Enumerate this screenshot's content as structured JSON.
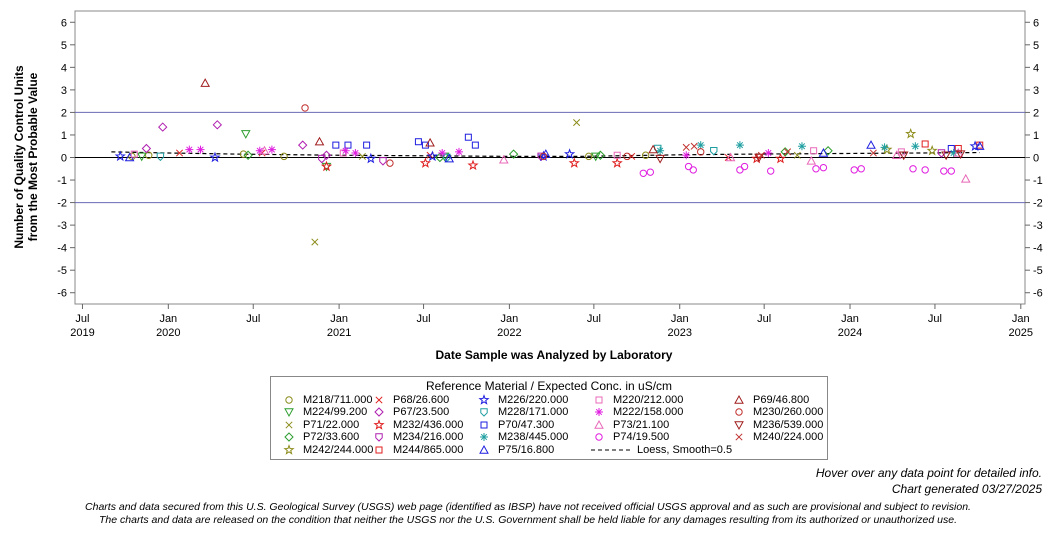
{
  "chart_data": {
    "type": "scatter",
    "ylabel_line1": "Number of Quality Control Units",
    "ylabel_line2": "from the Most Probable Value",
    "xlabel": "Date Sample was Analyzed by Laboratory",
    "ylim": [
      -6.5,
      6.5
    ],
    "yticks": [
      -6,
      -5,
      -4,
      -3,
      -2,
      -1,
      0,
      1,
      2,
      3,
      4,
      5,
      6
    ],
    "xlim": [
      "2019-06-15",
      "2025-01-10"
    ],
    "xticks": [
      {
        "date": "2019-07-01",
        "label": "Jul",
        "year": "2019"
      },
      {
        "date": "2020-01-01",
        "label": "Jan",
        "year": "2020"
      },
      {
        "date": "2020-07-01",
        "label": "Jul",
        "year": ""
      },
      {
        "date": "2021-01-01",
        "label": "Jan",
        "year": "2021"
      },
      {
        "date": "2021-07-01",
        "label": "Jul",
        "year": ""
      },
      {
        "date": "2022-01-01",
        "label": "Jan",
        "year": "2022"
      },
      {
        "date": "2022-07-01",
        "label": "Jul",
        "year": ""
      },
      {
        "date": "2023-01-01",
        "label": "Jan",
        "year": "2023"
      },
      {
        "date": "2023-07-01",
        "label": "Jul",
        "year": ""
      },
      {
        "date": "2024-01-01",
        "label": "Jan",
        "year": "2024"
      },
      {
        "date": "2024-07-01",
        "label": "Jul",
        "year": ""
      },
      {
        "date": "2025-01-01",
        "label": "Jan",
        "year": "2025"
      }
    ],
    "reference_lines": [
      {
        "y": 2,
        "color": "#6a6ab8"
      },
      {
        "y": 0,
        "color": "#000000"
      },
      {
        "y": -2,
        "color": "#6a6ab8"
      }
    ],
    "grid": false,
    "legend_position": "bottom-center",
    "legend_title": "Reference Material / Expected Conc. in uS/cm",
    "series": [
      {
        "name": "M218/711.000",
        "marker": "circle",
        "color": "#8c8c1a",
        "points": [
          [
            "2019-10-15",
            0.05
          ],
          [
            "2019-11-20",
            0.1
          ],
          [
            "2020-06-10",
            0.15
          ],
          [
            "2020-09-05",
            0.05
          ],
          [
            "2022-06-20",
            0.05
          ],
          [
            "2022-10-20",
            0.1
          ]
        ]
      },
      {
        "name": "M224/99.200",
        "marker": "triangle-down",
        "color": "#2e9e2e",
        "points": [
          [
            "2019-11-05",
            0.05
          ],
          [
            "2020-06-15",
            1.05
          ],
          [
            "2020-12-05",
            -0.4
          ],
          [
            "2021-08-15",
            0.05
          ],
          [
            "2022-07-05",
            0.05
          ]
        ]
      },
      {
        "name": "P71/22.000",
        "marker": "x",
        "color": "#8c8c1a",
        "points": [
          [
            "2020-11-10",
            -3.75
          ],
          [
            "2022-05-25",
            1.55
          ],
          [
            "2021-02-20",
            0.05
          ],
          [
            "2023-09-10",
            0.1
          ]
        ]
      },
      {
        "name": "P72/33.600",
        "marker": "diamond",
        "color": "#2e9e2e",
        "points": [
          [
            "2020-06-20",
            0.1
          ],
          [
            "2021-08-05",
            0.0
          ],
          [
            "2022-01-10",
            0.15
          ],
          [
            "2022-07-15",
            0.1
          ],
          [
            "2023-08-15",
            0.25
          ],
          [
            "2023-11-15",
            0.3
          ]
        ]
      },
      {
        "name": "M242/244.000",
        "marker": "star",
        "color": "#8c8c1a",
        "points": [
          [
            "2024-05-10",
            1.05
          ],
          [
            "2024-06-25",
            0.3
          ],
          [
            "2024-03-20",
            0.35
          ]
        ]
      },
      {
        "name": "P68/26.600",
        "marker": "x",
        "color": "#e01e1e",
        "points": [
          [
            "2020-01-25",
            0.2
          ],
          [
            "2020-07-20",
            0.2
          ],
          [
            "2021-07-15",
            0.1
          ],
          [
            "2022-09-20",
            0.05
          ],
          [
            "2023-04-15",
            0.0
          ]
        ]
      },
      {
        "name": "P67/23.500",
        "marker": "diamond",
        "color": "#b01eb0",
        "points": [
          [
            "2019-12-20",
            1.35
          ],
          [
            "2020-04-15",
            1.45
          ],
          [
            "2020-10-15",
            0.55
          ],
          [
            "2019-11-15",
            0.4
          ],
          [
            "2020-12-05",
            0.1
          ]
        ]
      },
      {
        "name": "M232/436.000",
        "marker": "star",
        "color": "#e01e1e",
        "points": [
          [
            "2020-12-05",
            -0.4
          ],
          [
            "2021-07-05",
            -0.25
          ],
          [
            "2021-10-15",
            -0.35
          ],
          [
            "2022-05-20",
            -0.25
          ],
          [
            "2022-08-20",
            -0.25
          ],
          [
            "2023-06-15",
            -0.05
          ],
          [
            "2023-08-05",
            -0.05
          ]
        ]
      },
      {
        "name": "M234/216.000",
        "marker": "shield",
        "color": "#b01eb0",
        "points": [
          [
            "2020-11-25",
            -0.05
          ],
          [
            "2021-04-05",
            -0.15
          ],
          [
            "2022-03-10",
            0.05
          ],
          [
            "2024-07-15",
            0.2
          ]
        ]
      },
      {
        "name": "M244/865.000",
        "marker": "square",
        "color": "#e01e1e",
        "points": [
          [
            "2024-06-10",
            0.6
          ],
          [
            "2024-08-20",
            0.4
          ],
          [
            "2024-10-05",
            0.55
          ]
        ]
      },
      {
        "name": "M226/220.000",
        "marker": "star",
        "color": "#1e1ee0",
        "points": [
          [
            "2019-09-20",
            0.05
          ],
          [
            "2020-04-10",
            0.0
          ],
          [
            "2021-03-10",
            -0.05
          ],
          [
            "2021-07-20",
            0.05
          ],
          [
            "2022-03-15",
            0.05
          ],
          [
            "2022-05-10",
            0.15
          ],
          [
            "2024-09-25",
            0.5
          ]
        ]
      },
      {
        "name": "M228/171.000",
        "marker": "shield",
        "color": "#1e9ea0",
        "points": [
          [
            "2019-12-15",
            0.05
          ],
          [
            "2021-08-20",
            0.0
          ],
          [
            "2022-11-15",
            0.4
          ],
          [
            "2023-03-15",
            0.3
          ]
        ]
      },
      {
        "name": "P70/47.300",
        "marker": "square",
        "color": "#1e1ee0",
        "points": [
          [
            "2020-12-25",
            0.55
          ],
          [
            "2021-01-20",
            0.55
          ],
          [
            "2021-03-01",
            0.55
          ],
          [
            "2021-06-20",
            0.7
          ],
          [
            "2021-07-05",
            0.55
          ],
          [
            "2021-10-05",
            0.9
          ],
          [
            "2021-10-20",
            0.55
          ],
          [
            "2024-08-05",
            0.4
          ]
        ]
      },
      {
        "name": "M238/445.000",
        "marker": "asterisk",
        "color": "#1e9ea0",
        "points": [
          [
            "2022-11-20",
            0.3
          ],
          [
            "2023-02-15",
            0.55
          ],
          [
            "2023-05-10",
            0.55
          ],
          [
            "2023-09-20",
            0.5
          ],
          [
            "2024-03-15",
            0.45
          ],
          [
            "2024-05-20",
            0.5
          ],
          [
            "2024-08-10",
            0.2
          ]
        ]
      },
      {
        "name": "P75/16.800",
        "marker": "triangle",
        "color": "#1e1ee0",
        "points": [
          [
            "2019-10-10",
            0.0
          ],
          [
            "2021-08-25",
            -0.05
          ],
          [
            "2022-03-20",
            0.15
          ],
          [
            "2023-11-05",
            0.2
          ],
          [
            "2024-02-15",
            0.55
          ],
          [
            "2024-10-05",
            0.5
          ]
        ]
      },
      {
        "name": "M220/212.000",
        "marker": "square",
        "color": "#e868b8",
        "points": [
          [
            "2019-10-20",
            0.15
          ],
          [
            "2021-01-10",
            0.2
          ],
          [
            "2022-08-20",
            0.1
          ],
          [
            "2023-10-15",
            0.3
          ],
          [
            "2024-04-20",
            0.25
          ]
        ]
      },
      {
        "name": "M222/158.000",
        "marker": "asterisk",
        "color": "#e01ee0",
        "points": [
          [
            "2020-02-15",
            0.35
          ],
          [
            "2020-03-10",
            0.35
          ],
          [
            "2020-07-15",
            0.3
          ],
          [
            "2020-08-10",
            0.35
          ],
          [
            "2021-01-15",
            0.3
          ],
          [
            "2021-02-05",
            0.2
          ],
          [
            "2021-08-10",
            0.2
          ],
          [
            "2021-09-15",
            0.25
          ],
          [
            "2023-01-15",
            0.1
          ],
          [
            "2023-07-10",
            0.2
          ]
        ]
      },
      {
        "name": "P73/21.100",
        "marker": "triangle",
        "color": "#e868b8",
        "points": [
          [
            "2020-07-25",
            0.3
          ],
          [
            "2021-12-20",
            -0.1
          ],
          [
            "2023-04-20",
            0.0
          ],
          [
            "2023-10-10",
            -0.15
          ],
          [
            "2024-04-10",
            0.1
          ],
          [
            "2024-09-05",
            -0.95
          ],
          [
            "2024-08-20",
            0.2
          ]
        ]
      },
      {
        "name": "P74/19.500",
        "marker": "circle",
        "color": "#e01ee0",
        "points": [
          [
            "2022-10-15",
            -0.7
          ],
          [
            "2022-10-30",
            -0.65
          ],
          [
            "2023-01-20",
            -0.4
          ],
          [
            "2023-01-30",
            -0.55
          ],
          [
            "2023-05-10",
            -0.55
          ],
          [
            "2023-05-20",
            -0.4
          ],
          [
            "2023-07-15",
            -0.6
          ],
          [
            "2023-10-20",
            -0.5
          ],
          [
            "2023-11-05",
            -0.45
          ],
          [
            "2024-01-10",
            -0.55
          ],
          [
            "2024-01-25",
            -0.5
          ],
          [
            "2024-05-15",
            -0.5
          ],
          [
            "2024-06-10",
            -0.55
          ],
          [
            "2024-07-20",
            -0.6
          ],
          [
            "2024-08-05",
            -0.6
          ]
        ]
      },
      {
        "name": "P69/46.800",
        "marker": "triangle",
        "color": "#a01e1e",
        "points": [
          [
            "2020-03-20",
            3.3
          ],
          [
            "2020-11-20",
            0.7
          ],
          [
            "2021-07-15",
            0.65
          ],
          [
            "2022-11-05",
            0.35
          ]
        ]
      },
      {
        "name": "M230/260.000",
        "marker": "circle",
        "color": "#c0302e",
        "points": [
          [
            "2020-10-20",
            2.2
          ],
          [
            "2021-04-20",
            -0.25
          ],
          [
            "2022-03-15",
            0.05
          ],
          [
            "2022-09-10",
            0.05
          ],
          [
            "2023-02-15",
            0.25
          ]
        ]
      },
      {
        "name": "M236/539.000",
        "marker": "triangle-down",
        "color": "#a01e1e",
        "points": [
          [
            "2022-11-20",
            -0.05
          ],
          [
            "2023-06-20",
            0.0
          ],
          [
            "2024-04-25",
            0.1
          ],
          [
            "2024-07-25",
            0.1
          ],
          [
            "2024-08-25",
            0.15
          ]
        ]
      },
      {
        "name": "M240/224.000",
        "marker": "x",
        "color": "#c0302e",
        "points": [
          [
            "2023-01-15",
            0.45
          ],
          [
            "2023-02-01",
            0.5
          ],
          [
            "2023-06-25",
            0.1
          ],
          [
            "2023-08-20",
            0.25
          ],
          [
            "2024-02-20",
            0.2
          ]
        ]
      }
    ],
    "loess": {
      "name": "Loess, Smooth=0.5",
      "x": [
        "2019-09-01",
        "2020-01-01",
        "2020-06-01",
        "2021-01-01",
        "2021-06-01",
        "2022-01-01",
        "2022-06-01",
        "2023-01-01",
        "2023-06-01",
        "2024-01-01",
        "2024-06-01",
        "2024-10-05"
      ],
      "y": [
        0.25,
        0.2,
        0.15,
        0.1,
        0.08,
        0.05,
        0.05,
        0.12,
        0.15,
        0.18,
        0.2,
        0.22
      ]
    }
  },
  "notes": {
    "hover": "Hover over any data point for detailed info.",
    "generated": "Chart generated 03/27/2025"
  },
  "disclaimer": {
    "line1": "Charts and data secured from this U.S. Geological Survey (USGS) web page (identified as IBSP) have not received official USGS approval and as such are provisional and subject to revision.",
    "line2": "The charts and data are released on the condition that neither the USGS nor the U.S. Government shall be held liable for any damages resulting from its authorized or unauthorized use."
  }
}
